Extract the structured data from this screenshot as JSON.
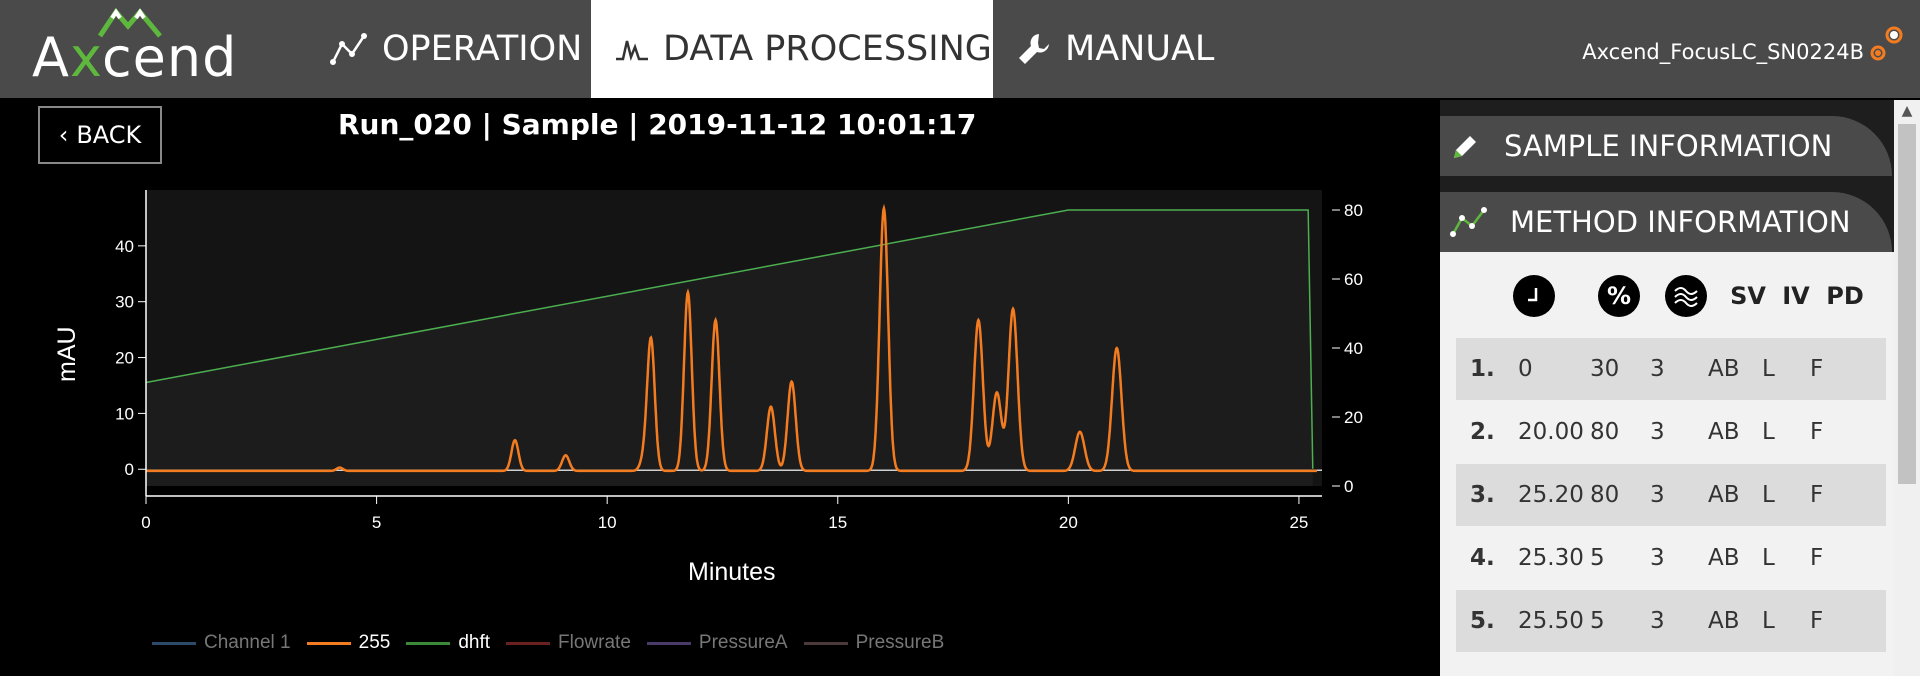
{
  "logo": {
    "pre": "A",
    "x": "x",
    "post": "cend"
  },
  "nav": {
    "operation": "OPERATION",
    "data_processing": "DATA PROCESSING",
    "manual": "MANUAL"
  },
  "device_name": "Axcend_FocusLC_SN0224B",
  "status_color": "#f47c20",
  "back_label": "BACK",
  "run_title": "Run_020 | Sample | 2019-11-12 10:01:17",
  "chart_data": {
    "type": "line",
    "xlabel": "Minutes",
    "ylabel": "mAU",
    "xlim": [
      0,
      25.5
    ],
    "ylim": [
      -3,
      50
    ],
    "y2lim": [
      0,
      80
    ],
    "xticks": [
      0,
      5,
      10,
      15,
      20,
      25
    ],
    "yticks": [
      0,
      10,
      20,
      30,
      40
    ],
    "y2ticks": [
      0,
      20,
      40,
      60,
      80
    ],
    "series": [
      {
        "name": "255",
        "color": "#f47c20",
        "axis": "left",
        "baseline": -0.3,
        "peaks": [
          [
            4.2,
            0.6
          ],
          [
            8.0,
            5.5
          ],
          [
            9.1,
            2.8
          ],
          [
            10.8,
            2.0
          ],
          [
            10.95,
            23.5
          ],
          [
            11.75,
            32.0
          ],
          [
            12.35,
            27.0
          ],
          [
            13.55,
            11.5
          ],
          [
            14.0,
            16.0
          ],
          [
            16.0,
            47.0
          ],
          [
            18.05,
            27.0
          ],
          [
            18.45,
            14.0
          ],
          [
            18.8,
            29.0
          ],
          [
            20.25,
            7.0
          ],
          [
            21.05,
            22.0
          ]
        ]
      },
      {
        "name": "dhft",
        "color": "#4caf50",
        "axis": "right",
        "points": [
          [
            0,
            30
          ],
          [
            20,
            80
          ],
          [
            25.2,
            80
          ],
          [
            25.3,
            5
          ]
        ]
      }
    ],
    "legend": [
      "Channel 1",
      "255",
      "dhft",
      "Flowrate",
      "PressureA",
      "PressureB"
    ],
    "legend_colors": [
      "#2d4a6a",
      "#f47c20",
      "#3a8a3a",
      "#6b2020",
      "#4a3a6a",
      "#4a3a3a"
    ],
    "legend_text_colors": [
      "#777",
      "#fff",
      "#fff",
      "#777",
      "#777",
      "#777"
    ]
  },
  "panel": {
    "sample_info": "SAMPLE INFORMATION",
    "method_info": "METHOD INFORMATION",
    "col_heads": {
      "pct": "%",
      "sv": "SV",
      "iv": "IV",
      "pd": "PD"
    },
    "rows": [
      {
        "num": "1.",
        "time": "0",
        "pct": "30",
        "flow": "3",
        "sv": "AB",
        "iv": "L",
        "pd": "F"
      },
      {
        "num": "2.",
        "time": "20.00",
        "pct": "80",
        "flow": "3",
        "sv": "AB",
        "iv": "L",
        "pd": "F"
      },
      {
        "num": "3.",
        "time": "25.20",
        "pct": "80",
        "flow": "3",
        "sv": "AB",
        "iv": "L",
        "pd": "F"
      },
      {
        "num": "4.",
        "time": "25.30",
        "pct": "5",
        "flow": "3",
        "sv": "AB",
        "iv": "L",
        "pd": "F"
      },
      {
        "num": "5.",
        "time": "25.50",
        "pct": "5",
        "flow": "3",
        "sv": "AB",
        "iv": "L",
        "pd": "F"
      }
    ]
  }
}
